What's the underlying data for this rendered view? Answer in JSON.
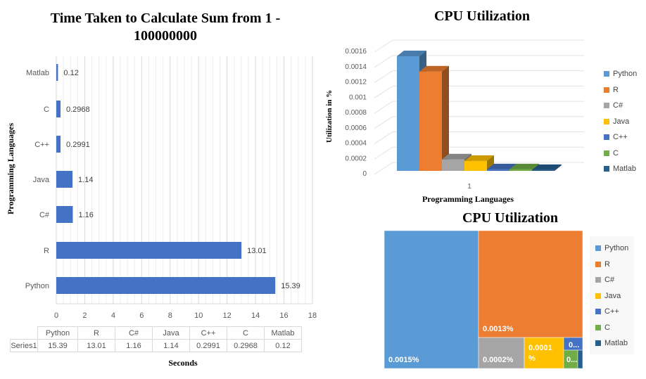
{
  "chart_data": [
    {
      "type": "bar",
      "orientation": "horizontal",
      "title": "Time Taken to Calculate Sum from 1 - 100000000",
      "xlabel": "Seconds",
      "ylabel": "Programming Languages",
      "categories": [
        "Python",
        "R",
        "C#",
        "Java",
        "C++",
        "C",
        "Matlab"
      ],
      "series": [
        {
          "name": "Series1",
          "values": [
            15.39,
            13.01,
            1.16,
            1.14,
            0.2991,
            0.2968,
            0.12
          ]
        }
      ],
      "value_labels": [
        "15.39",
        "13.01",
        "1.16",
        "1.14",
        "0.2991",
        "0.2968",
        "0.12"
      ],
      "xlim": [
        0,
        18
      ],
      "xticks": [
        "0",
        "2",
        "4",
        "6",
        "8",
        "10",
        "12",
        "14",
        "16",
        "18"
      ],
      "grid": true,
      "data_table": true,
      "color": "#4472c4"
    },
    {
      "type": "bar",
      "subtype": "3d-column",
      "title": "CPU Utilization",
      "xlabel": "Programming Languages",
      "ylabel": "Utilization in %",
      "categories": [
        "1"
      ],
      "series": [
        {
          "name": "Python",
          "values": [
            0.0015
          ]
        },
        {
          "name": "R",
          "values": [
            0.0013
          ]
        },
        {
          "name": "C#",
          "values": [
            0.00015
          ]
        },
        {
          "name": "Java",
          "values": [
            0.00013
          ]
        },
        {
          "name": "C++",
          "values": [
            2e-05
          ]
        },
        {
          "name": "C",
          "values": [
            2e-05
          ]
        },
        {
          "name": "Matlab",
          "values": [
            1e-05
          ]
        }
      ],
      "ylim": [
        0,
        0.0016
      ],
      "yticks": [
        "0",
        "0.0002",
        "0.0004",
        "0.0006",
        "0.0008",
        "0.001",
        "0.0012",
        "0.0014",
        "0.0016"
      ],
      "legend": "right",
      "grid": true
    },
    {
      "type": "treemap",
      "title": "CPU Utilization",
      "labels": [
        "Python",
        "R",
        "C#",
        "Java",
        "C++",
        "C",
        "Matlab"
      ],
      "values": [
        0.0015,
        0.0013,
        0.0002,
        0.0001,
        2e-05,
        2e-05,
        1e-05
      ],
      "data_labels": [
        "0.0015%",
        "0.0013%",
        "0.0002%",
        "0.0001 %",
        "0...",
        "0...",
        ""
      ],
      "legend": "right"
    }
  ],
  "colors": [
    "#5b9bd5",
    "#ed7d31",
    "#a5a5a5",
    "#ffc000",
    "#4472c4",
    "#70ad47",
    "#255e91"
  ],
  "table": {
    "row_label": "Series1"
  }
}
